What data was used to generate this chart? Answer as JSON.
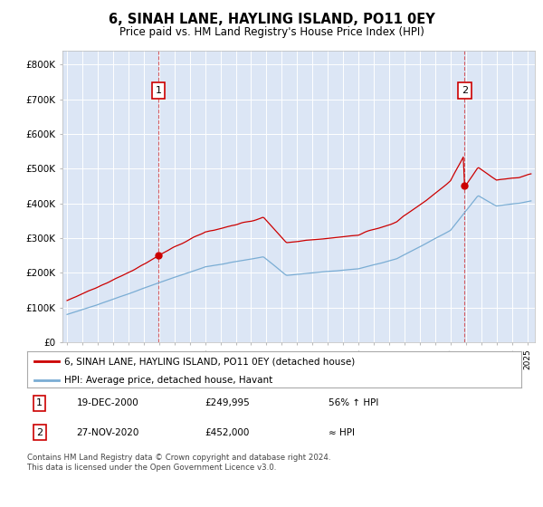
{
  "title": "6, SINAH LANE, HAYLING ISLAND, PO11 0EY",
  "subtitle": "Price paid vs. HM Land Registry's House Price Index (HPI)",
  "legend_line1": "6, SINAH LANE, HAYLING ISLAND, PO11 0EY (detached house)",
  "legend_line2": "HPI: Average price, detached house, Havant",
  "annotation1_date": "19-DEC-2000",
  "annotation1_price": "£249,995",
  "annotation1_note": "56% ↑ HPI",
  "annotation2_date": "27-NOV-2020",
  "annotation2_price": "£452,000",
  "annotation2_note": "≈ HPI",
  "footer": "Contains HM Land Registry data © Crown copyright and database right 2024.\nThis data is licensed under the Open Government Licence v3.0.",
  "background_color": "#dce6f5",
  "red_color": "#cc0000",
  "blue_color": "#7aadd4",
  "ylim_max": 800000,
  "yticks": [
    0,
    100000,
    200000,
    300000,
    400000,
    500000,
    600000,
    700000,
    800000
  ],
  "ytick_labels": [
    "£0",
    "£100K",
    "£200K",
    "£300K",
    "£400K",
    "£500K",
    "£600K",
    "£700K",
    "£800K"
  ],
  "sale1_year": 2000.96,
  "sale1_price": 249995,
  "sale2_year": 2020.92,
  "sale2_price": 452000,
  "xmin": 1994.7,
  "xmax": 2025.5
}
